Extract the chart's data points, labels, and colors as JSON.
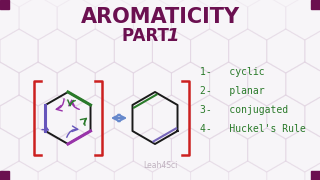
{
  "bg_color": "#f7f5f8",
  "title_line1": "AROMATICITY",
  "title_line2_a": "PART ",
  "title_line2_b": "1",
  "title_color": "#6b1050",
  "list_items": [
    "1-   cyclic",
    "2-   planar",
    "3-   conjugated",
    "4-   Huckel's Rule"
  ],
  "list_color": "#2a7a2a",
  "watermark": "Leah4Sci",
  "watermark_color": "#b0a0b0",
  "bracket_color": "#cc2020",
  "corner_square_color": "#6b1050",
  "arrow_color": "#6688cc",
  "hexagon_line_color": "#1a1a1a",
  "hex_bg_color": "#ddccdd",
  "arrow_colors": [
    "#9933aa",
    "#9933aa",
    "#6655bb",
    "#6655bb",
    "#2a7a2a",
    "#2a7a2a"
  ],
  "double_bond_colors": [
    "#9933aa",
    "#6655bb",
    "#2a7a2a"
  ]
}
